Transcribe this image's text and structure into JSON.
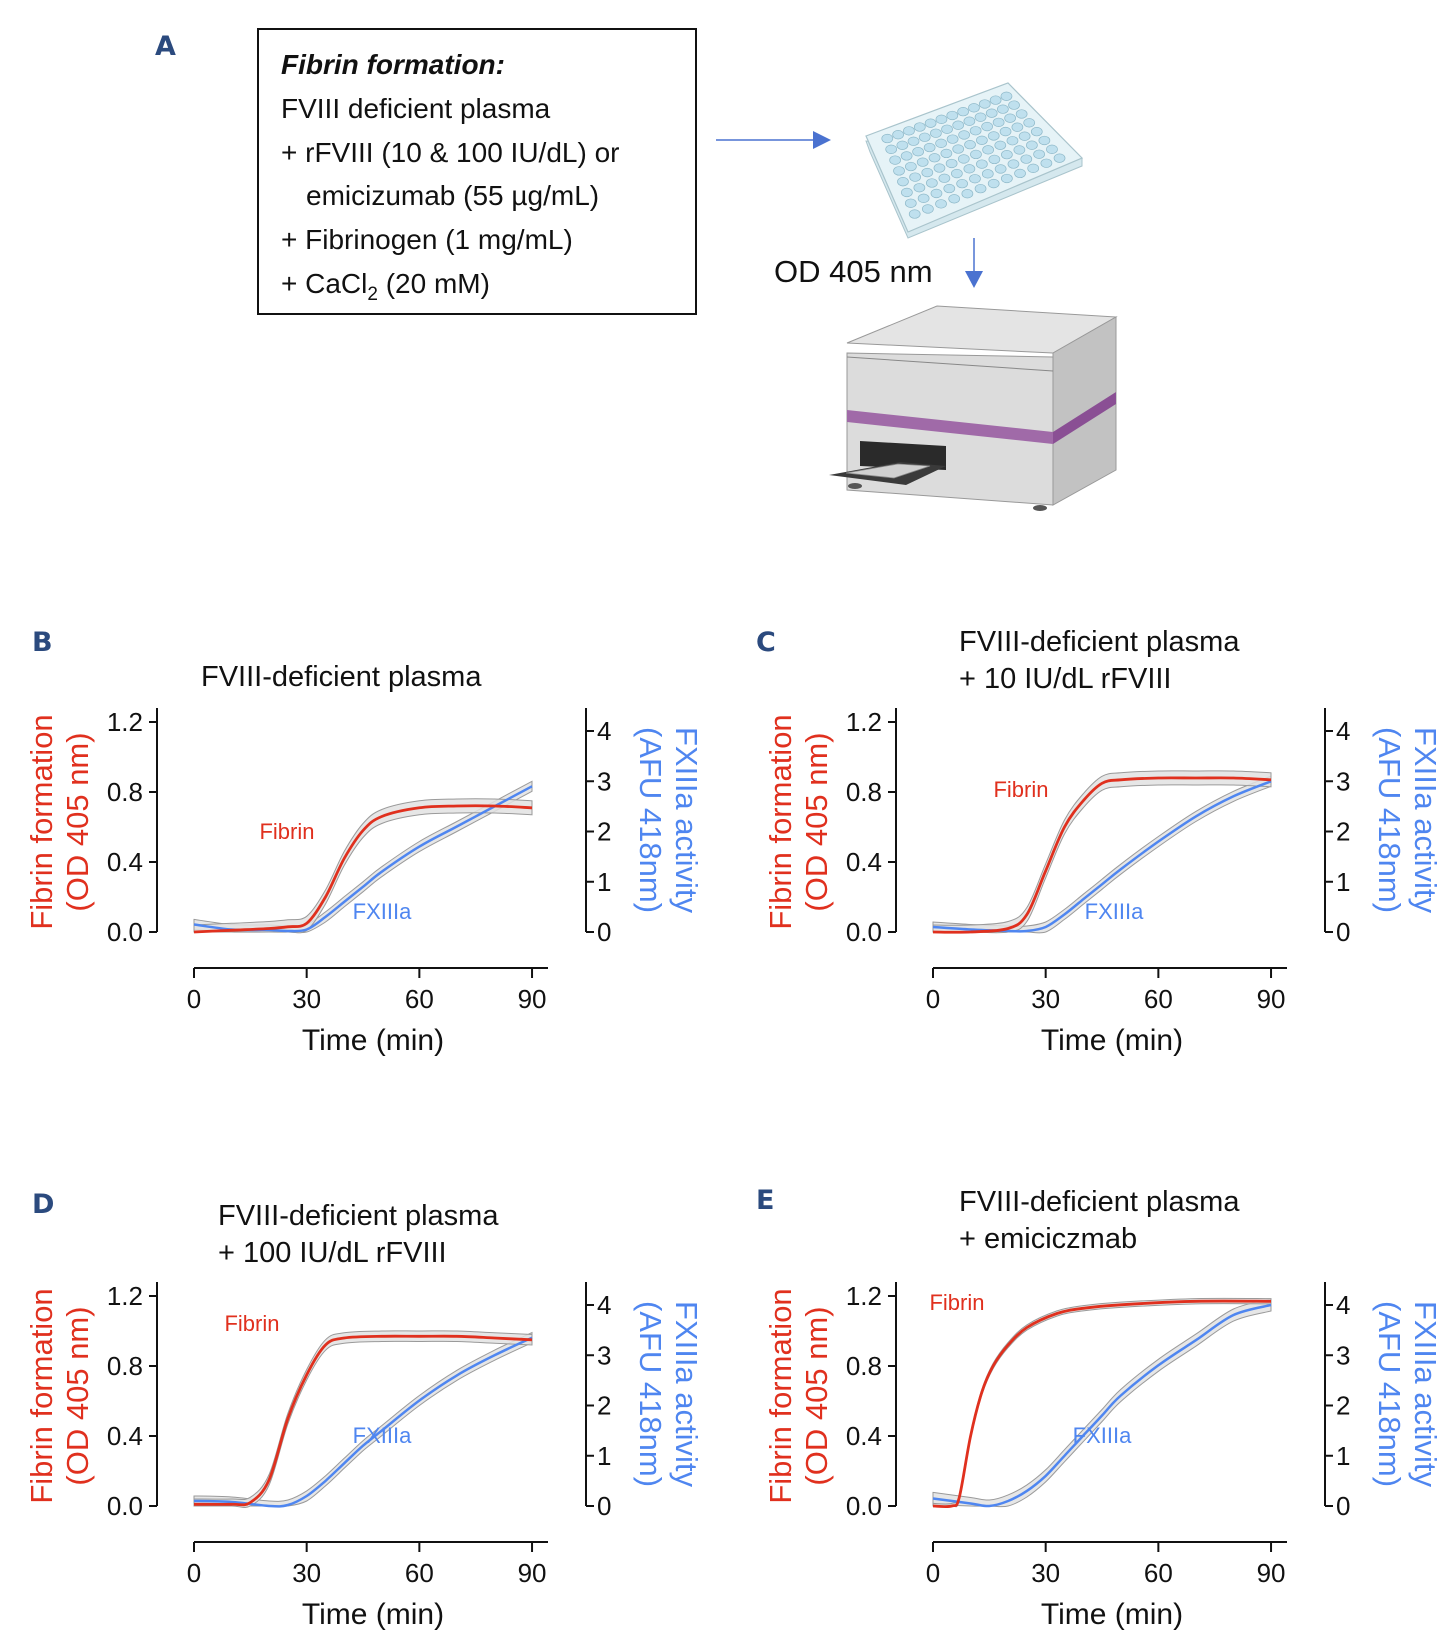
{
  "panel_a": {
    "letter": "A",
    "box_title": "Fibrin formation:",
    "box_lines": [
      "FVIII deficient plasma",
      "+ rFVIII (10 & 100 IU/dL) or",
      "emicizumab (55 µg/mL)",
      "+ Fibrinogen (1 mg/mL)"
    ],
    "cacl2_line": {
      "pre": "+ CaCl",
      "sub": "2",
      "post": " (20 mM)"
    },
    "readout_label": "OD 405 nm",
    "colors": {
      "arrow": "#4a72d0",
      "plate": "#dff0f6",
      "reader_band": "#a06aa8"
    }
  },
  "shared_axes": {
    "left_label_lines": [
      "Fibrin formation",
      "(OD 405 nm)"
    ],
    "right_label_lines": [
      "FXIIIa activity",
      "(AFU 418nm)"
    ],
    "xlabel": "Time (min)",
    "x_ticks": [
      "0",
      "30",
      "60",
      "90"
    ],
    "x_tick_values": [
      0,
      30,
      60,
      90
    ],
    "left_ticks": [
      "0.0",
      "0.4",
      "0.8",
      "1.2"
    ],
    "left_tick_values": [
      0,
      0.4,
      0.8,
      1.2
    ],
    "right_ticks": [
      "0",
      "1",
      "2",
      "3",
      "4"
    ],
    "right_tick_values": [
      0,
      1,
      2,
      3,
      4
    ],
    "colors": {
      "fibrin": "#e0301e",
      "fxiiia": "#4f86f0",
      "band": "#d9d9d9"
    }
  },
  "chart_data": [
    {
      "type": "line",
      "letter": "B",
      "title_lines": [
        "FVIII-deficient plasma"
      ],
      "xlabel": "Time (min)",
      "xlim": [
        0,
        90
      ],
      "ylabel": "Fibrin formation (OD 405 nm)",
      "ylim": [
        0,
        1.2
      ],
      "y2label": "FXIIIa activity (AFU 418nm)",
      "y2lim": [
        0,
        4
      ],
      "series": [
        {
          "name": "Fibrin",
          "axis": "left",
          "sd": 0.04,
          "x": [
            0,
            10,
            20,
            25,
            30,
            35,
            40,
            45,
            50,
            60,
            70,
            80,
            90
          ],
          "values": [
            0.0,
            0.01,
            0.02,
            0.03,
            0.05,
            0.2,
            0.42,
            0.58,
            0.66,
            0.71,
            0.72,
            0.72,
            0.71
          ]
        },
        {
          "name": "FXIIIa",
          "axis": "right",
          "sd": 0.1,
          "x": [
            0,
            10,
            20,
            25,
            30,
            35,
            40,
            45,
            50,
            60,
            70,
            80,
            90
          ],
          "values": [
            0.15,
            0.05,
            0.04,
            0.02,
            0.05,
            0.3,
            0.6,
            0.9,
            1.2,
            1.7,
            2.1,
            2.5,
            2.9
          ]
        }
      ]
    },
    {
      "type": "line",
      "letter": "C",
      "title_lines": [
        "FVIII-deficient plasma",
        "+ 10 IU/dL rFVIII"
      ],
      "xlabel": "Time (min)",
      "xlim": [
        0,
        90
      ],
      "ylabel": "Fibrin formation (OD 405 nm)",
      "ylim": [
        0,
        1.2
      ],
      "y2label": "FXIIIa activity (AFU 418nm)",
      "y2lim": [
        0,
        4
      ],
      "series": [
        {
          "name": "Fibrin",
          "axis": "left",
          "sd": 0.04,
          "x": [
            0,
            10,
            20,
            25,
            30,
            35,
            40,
            45,
            50,
            60,
            70,
            80,
            90
          ],
          "values": [
            0.0,
            0.0,
            0.02,
            0.1,
            0.35,
            0.6,
            0.75,
            0.85,
            0.87,
            0.88,
            0.88,
            0.88,
            0.87
          ]
        },
        {
          "name": "FXIIIa",
          "axis": "right",
          "sd": 0.1,
          "x": [
            0,
            10,
            20,
            25,
            30,
            35,
            40,
            45,
            50,
            60,
            70,
            80,
            90
          ],
          "values": [
            0.1,
            0.05,
            0.02,
            0.02,
            0.1,
            0.35,
            0.65,
            0.95,
            1.25,
            1.8,
            2.3,
            2.7,
            3.0
          ]
        }
      ]
    },
    {
      "type": "line",
      "letter": "D",
      "title_lines": [
        "FVIII-deficient plasma",
        "+ 100 IU/dL rFVIII"
      ],
      "xlabel": "Time (min)",
      "xlim": [
        0,
        90
      ],
      "ylabel": "Fibrin formation (OD 405 nm)",
      "ylim": [
        0,
        1.2
      ],
      "y2label": "FXIIIa activity (AFU 418nm)",
      "y2lim": [
        0,
        4
      ],
      "series": [
        {
          "name": "Fibrin",
          "axis": "left",
          "sd": 0.03,
          "x": [
            0,
            10,
            15,
            20,
            25,
            30,
            35,
            40,
            50,
            60,
            70,
            80,
            90
          ],
          "values": [
            0.01,
            0.01,
            0.02,
            0.15,
            0.5,
            0.75,
            0.92,
            0.96,
            0.97,
            0.97,
            0.97,
            0.96,
            0.95
          ]
        },
        {
          "name": "FXIIIa",
          "axis": "right",
          "sd": 0.1,
          "x": [
            0,
            10,
            20,
            25,
            30,
            35,
            40,
            45,
            50,
            60,
            70,
            80,
            90
          ],
          "values": [
            0.1,
            0.08,
            0.0,
            0.02,
            0.2,
            0.5,
            0.85,
            1.2,
            1.5,
            2.1,
            2.6,
            3.0,
            3.35
          ]
        }
      ]
    },
    {
      "type": "line",
      "letter": "E",
      "title_lines": [
        "FVIII-deficient plasma",
        "+ emiciczmab"
      ],
      "xlabel": "Time (min)",
      "xlim": [
        0,
        90
      ],
      "ylabel": "Fibrin formation (OD 405 nm)",
      "ylim": [
        0,
        1.2
      ],
      "y2label": "FXIIIa activity (AFU 418nm)",
      "y2lim": [
        0,
        4
      ],
      "series": [
        {
          "name": "Fibrin",
          "axis": "left",
          "sd": 0.015,
          "x": [
            0,
            5,
            7,
            10,
            13,
            16,
            20,
            25,
            33,
            40,
            50,
            70,
            90
          ],
          "values": [
            0.0,
            0.0,
            0.05,
            0.4,
            0.65,
            0.8,
            0.92,
            1.02,
            1.1,
            1.13,
            1.15,
            1.17,
            1.17
          ]
        },
        {
          "name": "FXIIIa",
          "axis": "right",
          "sd": 0.12,
          "x": [
            0,
            10,
            15,
            20,
            25,
            30,
            35,
            40,
            45,
            50,
            60,
            70,
            80,
            90
          ],
          "values": [
            0.15,
            0.05,
            0.0,
            0.1,
            0.3,
            0.6,
            1.0,
            1.4,
            1.8,
            2.2,
            2.8,
            3.3,
            3.8,
            4.0
          ]
        }
      ]
    }
  ]
}
